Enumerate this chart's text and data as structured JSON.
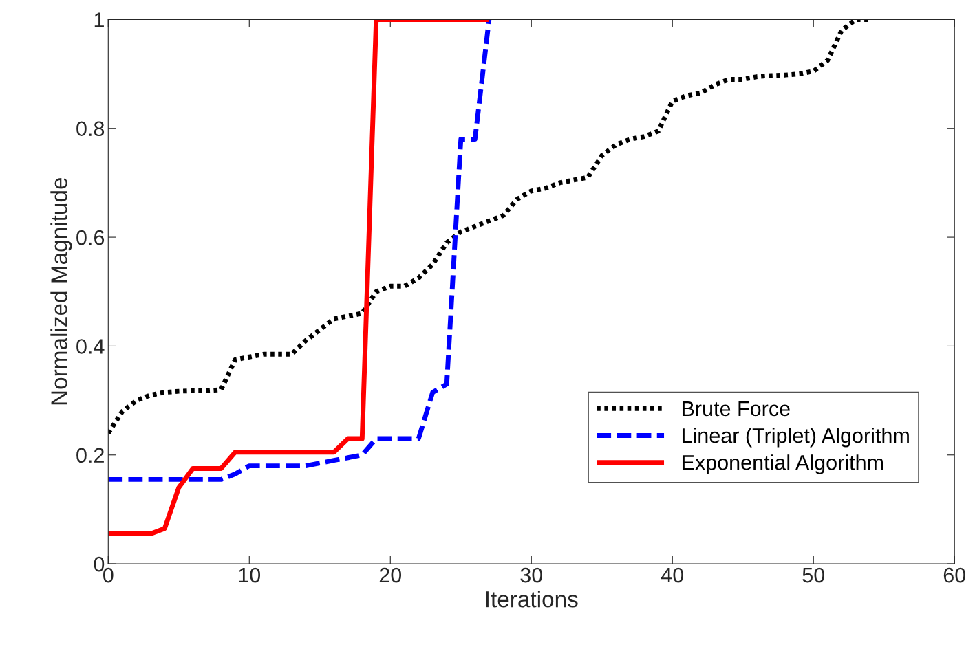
{
  "chart_data": {
    "type": "line",
    "xlabel": "Iterations",
    "ylabel": "Normalized Magnitude",
    "xlim": [
      0,
      60
    ],
    "ylim": [
      0,
      1
    ],
    "xticks": [
      0,
      10,
      20,
      30,
      40,
      50,
      60
    ],
    "yticks": [
      0,
      0.2,
      0.4,
      0.6,
      0.8,
      1
    ],
    "grid": false,
    "legend": "lower right",
    "series": [
      {
        "name": "Brute Force",
        "color": "#000000",
        "line_style": "dotted",
        "x": [
          0,
          1,
          2,
          3,
          4,
          5,
          6,
          7,
          8,
          9,
          10,
          11,
          12,
          13,
          14,
          15,
          16,
          17,
          18,
          19,
          20,
          21,
          22,
          23,
          24,
          25,
          26,
          27,
          28,
          29,
          30,
          31,
          32,
          33,
          34,
          35,
          36,
          37,
          38,
          39,
          40,
          41,
          42,
          43,
          44,
          45,
          46,
          47,
          48,
          49,
          50,
          51,
          52,
          53,
          54
        ],
        "values": [
          0.24,
          0.28,
          0.3,
          0.31,
          0.315,
          0.317,
          0.318,
          0.318,
          0.32,
          0.375,
          0.38,
          0.385,
          0.385,
          0.385,
          0.41,
          0.43,
          0.45,
          0.455,
          0.46,
          0.5,
          0.51,
          0.51,
          0.525,
          0.55,
          0.59,
          0.61,
          0.62,
          0.63,
          0.64,
          0.67,
          0.685,
          0.69,
          0.7,
          0.705,
          0.71,
          0.75,
          0.77,
          0.78,
          0.785,
          0.795,
          0.85,
          0.86,
          0.865,
          0.88,
          0.89,
          0.89,
          0.895,
          0.897,
          0.898,
          0.9,
          0.905,
          0.925,
          0.98,
          1.0,
          1.0
        ]
      },
      {
        "name": "Linear (Triplet) Algorithm",
        "color": "#0000ff",
        "line_style": "dashed",
        "x": [
          0,
          1,
          2,
          3,
          4,
          5,
          6,
          7,
          8,
          9,
          10,
          11,
          12,
          13,
          14,
          15,
          16,
          17,
          18,
          19,
          20,
          21,
          22,
          23,
          24,
          25,
          26,
          27
        ],
        "values": [
          0.155,
          0.155,
          0.155,
          0.155,
          0.155,
          0.155,
          0.155,
          0.155,
          0.155,
          0.165,
          0.18,
          0.18,
          0.18,
          0.18,
          0.18,
          0.185,
          0.19,
          0.195,
          0.2,
          0.23,
          0.23,
          0.23,
          0.23,
          0.315,
          0.33,
          0.78,
          0.78,
          1.0
        ]
      },
      {
        "name": "Exponential Algorithm",
        "color": "#ff0000",
        "line_style": "solid",
        "x": [
          0,
          1,
          2,
          3,
          4,
          5,
          6,
          7,
          8,
          9,
          10,
          11,
          12,
          13,
          14,
          15,
          16,
          17,
          18,
          19,
          20,
          21,
          22,
          23,
          24,
          25,
          26,
          27
        ],
        "values": [
          0.055,
          0.055,
          0.055,
          0.055,
          0.065,
          0.14,
          0.175,
          0.175,
          0.175,
          0.205,
          0.205,
          0.205,
          0.205,
          0.205,
          0.205,
          0.205,
          0.205,
          0.23,
          0.23,
          1.0,
          1.0,
          1.0,
          1.0,
          1.0,
          1.0,
          1.0,
          1.0,
          1.0
        ]
      }
    ]
  }
}
